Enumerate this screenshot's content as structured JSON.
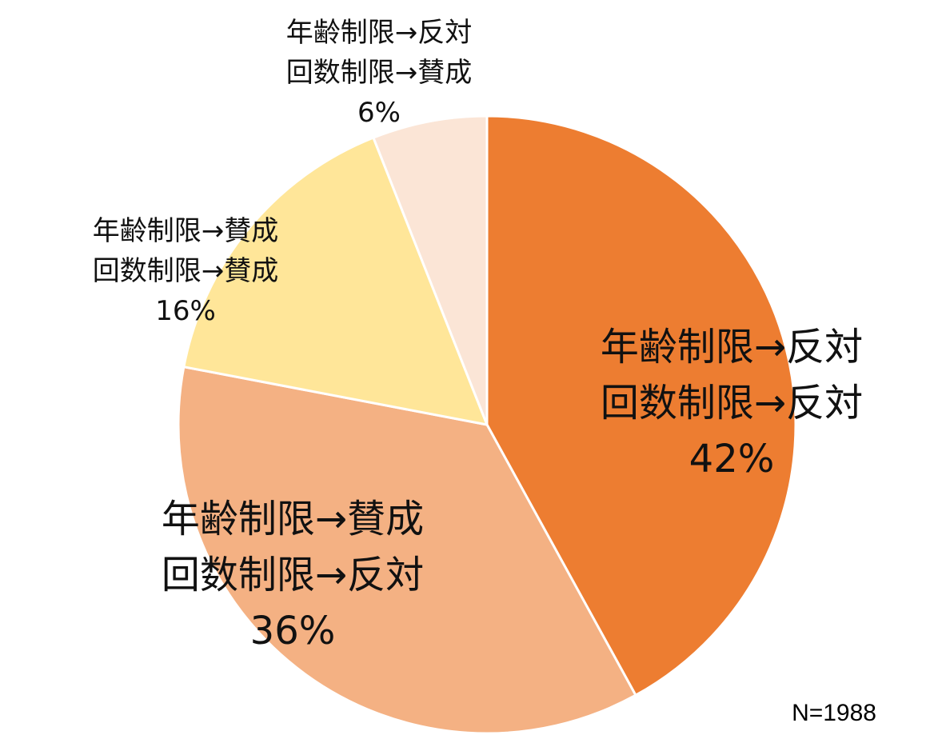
{
  "chart_data": {
    "type": "pie",
    "start_angle_deg": 0,
    "direction": "clockwise",
    "slices": [
      {
        "label_lines": [
          "年齢制限→反対",
          "回数制限→反対"
        ],
        "value": 42,
        "value_text": "42%",
        "color": "#ED7D31"
      },
      {
        "label_lines": [
          "年齢制限→賛成",
          "回数制限→反対"
        ],
        "value": 36,
        "value_text": "36%",
        "color": "#F4B183"
      },
      {
        "label_lines": [
          "年齢制限→賛成",
          "回数制限→賛成"
        ],
        "value": 16,
        "value_text": "16%",
        "color": "#FFE699"
      },
      {
        "label_lines": [
          "年齢制限→反対",
          "回数制限→賛成"
        ],
        "value": 6,
        "value_text": "6%",
        "color": "#FBE5D6"
      }
    ]
  },
  "note": "N=1988"
}
